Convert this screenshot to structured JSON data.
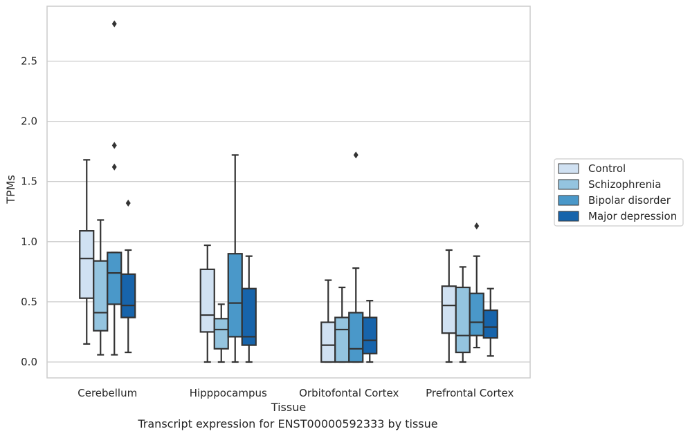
{
  "caption": "Transcript expression for ENST00000592333 by tissue",
  "colors": {
    "Control": "#d0e1f2",
    "Schizophrenia": "#94c4df",
    "Bipolar disorder": "#4a98c9",
    "Major depression": "#1764ab",
    "stroke": "#333333",
    "grid": "#cccccc",
    "frame": "#cccccc"
  },
  "chart_data": {
    "type": "box",
    "title": "",
    "xlabel": "Tissue",
    "ylabel": "TPMs",
    "ylim": [
      -0.14,
      2.96
    ],
    "yticks": [
      "0.0",
      "0.5",
      "1.0",
      "1.5",
      "2.0",
      "2.5"
    ],
    "grid": "horizontal",
    "legend_position": "right",
    "categories": [
      "Cerebellum",
      "Hipppocampus",
      "Orbitofontal Cortex",
      "Prefrontal Cortex"
    ],
    "series": [
      {
        "name": "Control",
        "boxes": [
          {
            "whislo": 0.15,
            "q1": 0.53,
            "med": 0.86,
            "q3": 1.09,
            "whishi": 1.68,
            "fliers": []
          },
          {
            "whislo": 0.0,
            "q1": 0.25,
            "med": 0.39,
            "q3": 0.77,
            "whishi": 0.97,
            "fliers": []
          },
          {
            "whislo": 0.0,
            "q1": 0.0,
            "med": 0.14,
            "q3": 0.33,
            "whishi": 0.68,
            "fliers": []
          },
          {
            "whislo": 0.0,
            "q1": 0.24,
            "med": 0.47,
            "q3": 0.63,
            "whishi": 0.93,
            "fliers": []
          }
        ]
      },
      {
        "name": "Schizophrenia",
        "boxes": [
          {
            "whislo": 0.06,
            "q1": 0.26,
            "med": 0.41,
            "q3": 0.84,
            "whishi": 1.18,
            "fliers": []
          },
          {
            "whislo": 0.0,
            "q1": 0.11,
            "med": 0.27,
            "q3": 0.36,
            "whishi": 0.48,
            "fliers": []
          },
          {
            "whislo": 0.0,
            "q1": 0.0,
            "med": 0.27,
            "q3": 0.37,
            "whishi": 0.62,
            "fliers": []
          },
          {
            "whislo": 0.0,
            "q1": 0.08,
            "med": 0.22,
            "q3": 0.62,
            "whishi": 0.79,
            "fliers": []
          }
        ]
      },
      {
        "name": "Bipolar disorder",
        "boxes": [
          {
            "whislo": 0.06,
            "q1": 0.48,
            "med": 0.74,
            "q3": 0.91,
            "whishi": 0.91,
            "fliers": [
              2.81,
              1.8,
              1.62
            ]
          },
          {
            "whislo": 0.0,
            "q1": 0.21,
            "med": 0.49,
            "q3": 0.9,
            "whishi": 1.72,
            "fliers": []
          },
          {
            "whislo": 0.0,
            "q1": 0.0,
            "med": 0.11,
            "q3": 0.41,
            "whishi": 0.78,
            "fliers": [
              1.72
            ]
          },
          {
            "whislo": 0.12,
            "q1": 0.22,
            "med": 0.33,
            "q3": 0.57,
            "whishi": 0.88,
            "fliers": [
              1.13
            ]
          }
        ]
      },
      {
        "name": "Major depression",
        "boxes": [
          {
            "whislo": 0.08,
            "q1": 0.37,
            "med": 0.47,
            "q3": 0.73,
            "whishi": 0.93,
            "fliers": [
              1.32
            ]
          },
          {
            "whislo": 0.0,
            "q1": 0.14,
            "med": 0.21,
            "q3": 0.61,
            "whishi": 0.88,
            "fliers": []
          },
          {
            "whislo": 0.0,
            "q1": 0.07,
            "med": 0.18,
            "q3": 0.37,
            "whishi": 0.51,
            "fliers": []
          },
          {
            "whislo": 0.05,
            "q1": 0.2,
            "med": 0.29,
            "q3": 0.43,
            "whishi": 0.61,
            "fliers": []
          }
        ]
      }
    ]
  }
}
